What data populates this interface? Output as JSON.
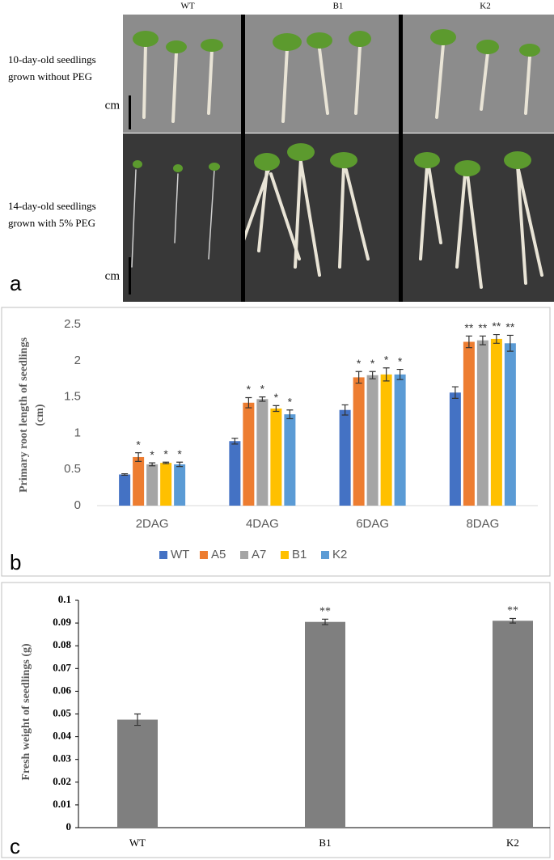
{
  "photo_panel": {
    "panel_label": "a",
    "columns": [
      "WT",
      "B1",
      "K2"
    ],
    "rows": [
      {
        "caption": [
          "10-day-old seedlings",
          "grown without PEG"
        ],
        "scale_unit": "cm"
      },
      {
        "caption": [
          "14-day-old seedlings",
          "grown with 5% PEG"
        ],
        "scale_unit": "cm"
      }
    ]
  },
  "chart_data": [
    {
      "type": "bar",
      "panel_label": "b",
      "ylabel": [
        "Primary root length of seedlings",
        "(cm)"
      ],
      "categories": [
        "2DAG",
        "4DAG",
        "6DAG",
        "8DAG"
      ],
      "series": [
        {
          "name": "WT",
          "color": "#4472c4",
          "values": [
            0.43,
            0.89,
            1.32,
            1.56
          ],
          "errors": [
            0.01,
            0.04,
            0.07,
            0.08
          ],
          "significance": [
            null,
            null,
            null,
            null
          ]
        },
        {
          "name": "A5",
          "color": "#ed7d31",
          "values": [
            0.67,
            1.42,
            1.77,
            2.26
          ],
          "errors": [
            0.06,
            0.07,
            0.08,
            0.08
          ],
          "significance": [
            "*",
            "*",
            "*",
            "**"
          ]
        },
        {
          "name": "A7",
          "color": "#a5a5a5",
          "values": [
            0.57,
            1.47,
            1.8,
            2.28
          ],
          "errors": [
            0.02,
            0.03,
            0.05,
            0.06
          ],
          "significance": [
            "*",
            "*",
            "*",
            "**"
          ]
        },
        {
          "name": "B1",
          "color": "#ffc000",
          "values": [
            0.59,
            1.34,
            1.81,
            2.3
          ],
          "errors": [
            0.01,
            0.04,
            0.09,
            0.06
          ],
          "significance": [
            "*",
            "*",
            "*",
            "**"
          ]
        },
        {
          "name": "K2",
          "color": "#5b9bd5",
          "values": [
            0.57,
            1.26,
            1.81,
            2.24
          ],
          "errors": [
            0.03,
            0.06,
            0.07,
            0.11
          ],
          "significance": [
            "*",
            "*",
            "*",
            "**"
          ]
        }
      ],
      "ylim": [
        0,
        2.5
      ],
      "yticks": [
        0,
        0.5,
        1,
        1.5,
        2,
        2.5
      ],
      "grid": false,
      "legend": "bottom"
    },
    {
      "type": "bar",
      "panel_label": "c",
      "ylabel": [
        "Fresh weight of seedlings (g)"
      ],
      "categories": [
        "WT",
        "B1",
        "K2"
      ],
      "color": "#7f7f7f",
      "values": [
        0.0475,
        0.0905,
        0.091
      ],
      "errors": [
        0.0025,
        0.0012,
        0.001
      ],
      "significance": [
        null,
        "**",
        "**"
      ],
      "ylim": [
        0,
        0.1
      ],
      "yticks": [
        0,
        0.01,
        0.02,
        0.03,
        0.04,
        0.05,
        0.06,
        0.07,
        0.08,
        0.09,
        0.1
      ],
      "grid": false
    }
  ]
}
